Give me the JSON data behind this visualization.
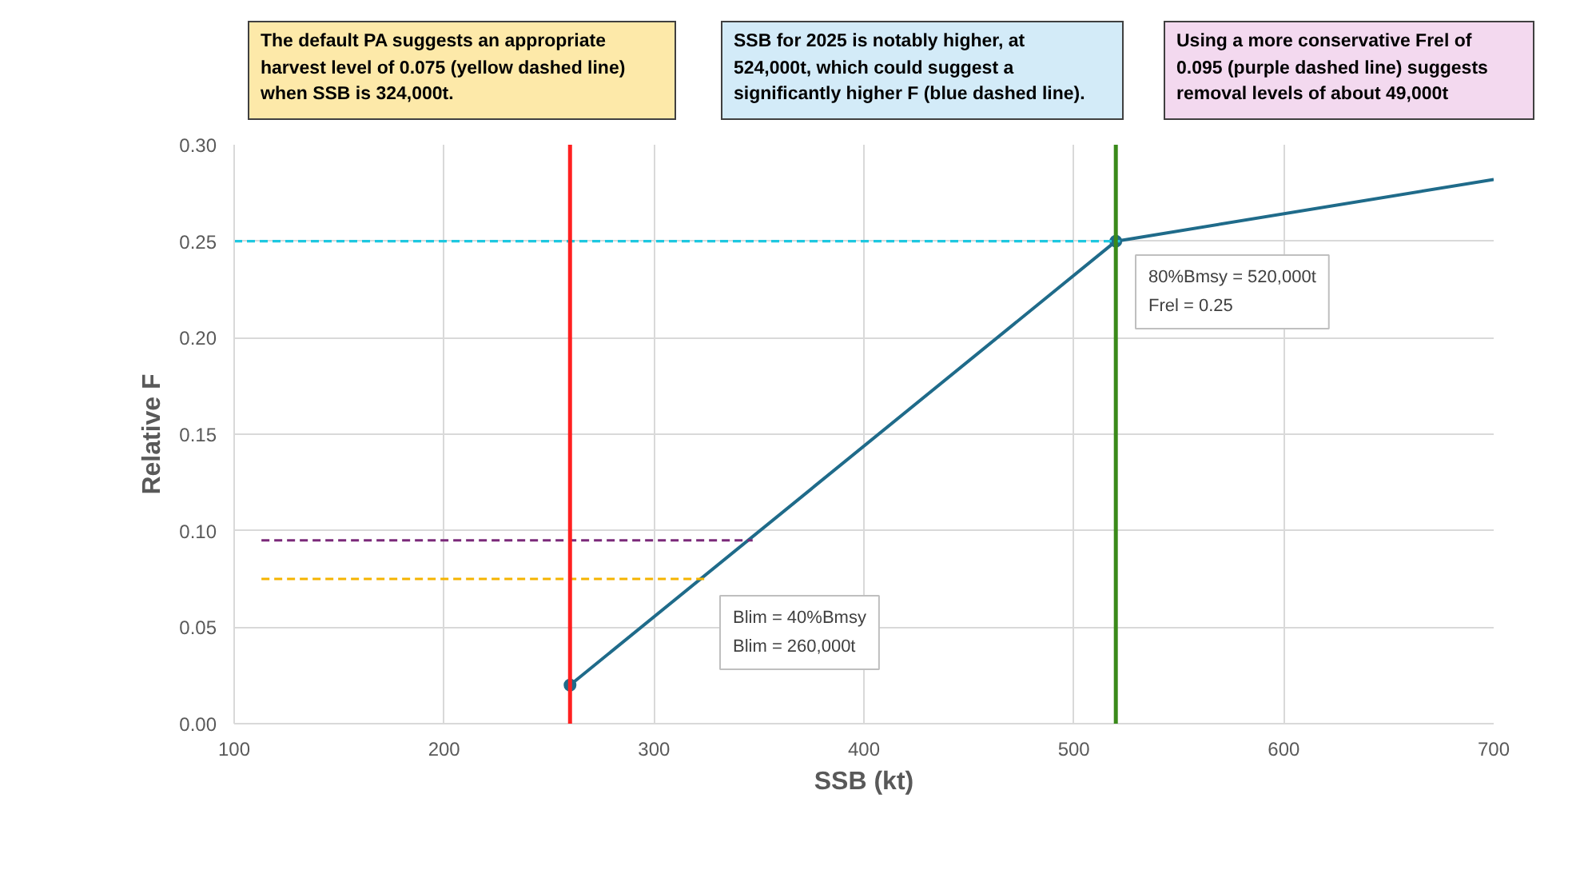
{
  "chart_data": {
    "type": "line",
    "xlabel": "SSB (kt)",
    "ylabel": "Relative F",
    "xlim": [
      100,
      700
    ],
    "xticks": [
      100,
      200,
      300,
      400,
      500,
      600,
      700
    ],
    "ylim": [
      0,
      0.3
    ],
    "yticks": [
      {
        "value": 0,
        "label": "0.00"
      },
      {
        "value": 0.05,
        "label": "0.05"
      },
      {
        "value": 0.1,
        "label": "0.10"
      },
      {
        "value": 0.15,
        "label": "0.15"
      },
      {
        "value": 0.2,
        "label": "0.20"
      },
      {
        "value": 0.25,
        "label": "0.25"
      },
      {
        "value": 0.3,
        "label": "0.30"
      }
    ],
    "grid": true,
    "line_style": "solid",
    "series": [
      {
        "color": "#1f6b8a",
        "x": [
          260,
          520,
          700
        ],
        "values": [
          0.02,
          0.25,
          0.282
        ]
      },
      {
        "type": "scatter",
        "color": "#1f6b8a",
        "marker": "circle",
        "x": [
          260,
          520
        ],
        "values": [
          0.02,
          0.25
        ]
      },
      {
        "color": "#f5b400",
        "line_style": "dashed",
        "x": [
          113,
          324
        ],
        "values": [
          0.075,
          0.075
        ]
      },
      {
        "color": "#7b2a7a",
        "line_style": "dashed",
        "x": [
          113,
          347
        ],
        "values": [
          0.095,
          0.095
        ]
      },
      {
        "color": "#1ec8e0",
        "line_style": "dashed",
        "x": [
          100,
          522
        ],
        "values": [
          0.25,
          0.25
        ]
      }
    ],
    "ref_lines": [
      {
        "axis": "x",
        "value": 260,
        "color": "#ff2020"
      },
      {
        "axis": "x",
        "value": 520,
        "color": "#3a8a1a"
      }
    ],
    "annotations": [
      "The default PA suggests an appropriate\nharvest level of 0.075 (yellow dashed line)\nwhen SSB is 324,000t.",
      "SSB for 2025 is notably higher, at\n524,000t, which could suggest a\nsignificantly higher F (blue dashed line).",
      "Using a more conservative Frel of\n0.095 (purple dashed line) suggests\nremoval levels of about 49,000t",
      "Blim = 40%Bmsy\nBlim = 260,000t",
      "80%Bmsy = 520,000t\nFrel = 0.25"
    ]
  }
}
